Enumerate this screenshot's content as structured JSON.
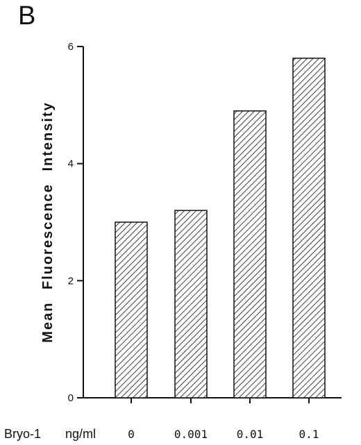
{
  "panel_label": "B",
  "chart_data": {
    "type": "bar",
    "categories": [
      "0",
      "0.001",
      "0.01",
      "0.1"
    ],
    "values": [
      3.0,
      3.2,
      4.9,
      5.8
    ],
    "ylabel": "Mean Fluorescence Intensity",
    "xlabel_parts": [
      "Bryo-1",
      "ng/ml"
    ],
    "yticks": [
      0,
      2,
      4,
      6
    ],
    "ylim": [
      0,
      6
    ],
    "bar_fill": "hatched",
    "bar_color": "#111111"
  }
}
